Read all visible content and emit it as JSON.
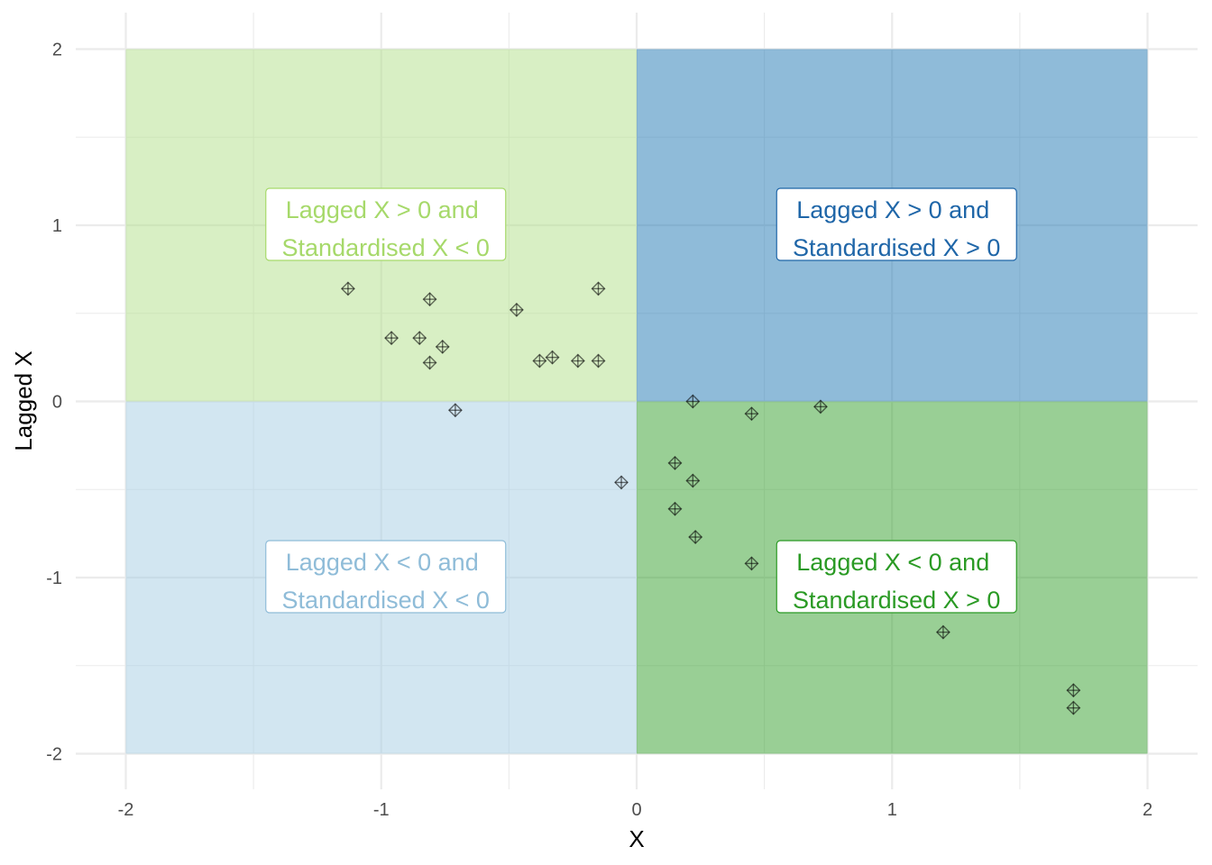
{
  "chart_data": {
    "type": "scatter",
    "xlabel": "X",
    "ylabel": "Lagged X",
    "xlim": [
      -2,
      2
    ],
    "ylim": [
      -2,
      2
    ],
    "x_ticks": [
      "-2",
      "-1",
      "0",
      "1",
      "2"
    ],
    "y_ticks": [
      "-2",
      "-1",
      "0",
      "1",
      "2"
    ],
    "grid": true,
    "quadrants": [
      {
        "id": "q-top-left",
        "x": [
          -2,
          0
        ],
        "y": [
          0,
          2
        ],
        "color": "#b2df8a",
        "text_color": "#a6d96a",
        "label_line1": "Lagged X > 0 and",
        "label_line2": "Standardised X < 0"
      },
      {
        "id": "q-top-right",
        "x": [
          0,
          2
        ],
        "y": [
          0,
          2
        ],
        "color": "#1f78b4",
        "text_color": "#1f66a8",
        "label_line1": "Lagged X > 0 and",
        "label_line2": "Standardised X > 0"
      },
      {
        "id": "q-bottom-left",
        "x": [
          -2,
          0
        ],
        "y": [
          -2,
          0
        ],
        "color": "#a6cee3",
        "text_color": "#8fbcd8",
        "label_line1": "Lagged X < 0 and",
        "label_line2": "Standardised X < 0"
      },
      {
        "id": "q-bottom-right",
        "x": [
          0,
          2
        ],
        "y": [
          -2,
          0
        ],
        "color": "#33a02c",
        "text_color": "#2a9a24",
        "label_line1": "Lagged X < 0 and",
        "label_line2": "Standardised X > 0"
      }
    ],
    "points": [
      {
        "x": -1.13,
        "y": 0.64
      },
      {
        "x": -0.81,
        "y": 0.58
      },
      {
        "x": -0.96,
        "y": 0.36
      },
      {
        "x": -0.85,
        "y": 0.36
      },
      {
        "x": -0.76,
        "y": 0.31
      },
      {
        "x": -0.81,
        "y": 0.22
      },
      {
        "x": -0.47,
        "y": 0.52
      },
      {
        "x": -0.15,
        "y": 0.64
      },
      {
        "x": -0.38,
        "y": 0.23
      },
      {
        "x": -0.33,
        "y": 0.25
      },
      {
        "x": -0.23,
        "y": 0.23
      },
      {
        "x": -0.15,
        "y": 0.23
      },
      {
        "x": -0.71,
        "y": -0.05
      },
      {
        "x": -0.06,
        "y": -0.46
      },
      {
        "x": 0.22,
        "y": 0.0
      },
      {
        "x": 0.45,
        "y": -0.07
      },
      {
        "x": 0.72,
        "y": -0.03
      },
      {
        "x": 0.15,
        "y": -0.35
      },
      {
        "x": 0.22,
        "y": -0.45
      },
      {
        "x": 0.15,
        "y": -0.61
      },
      {
        "x": 0.23,
        "y": -0.77
      },
      {
        "x": 0.45,
        "y": -0.92
      },
      {
        "x": 1.2,
        "y": -1.31
      },
      {
        "x": 1.71,
        "y": -1.64
      },
      {
        "x": 1.71,
        "y": -1.74
      }
    ]
  }
}
